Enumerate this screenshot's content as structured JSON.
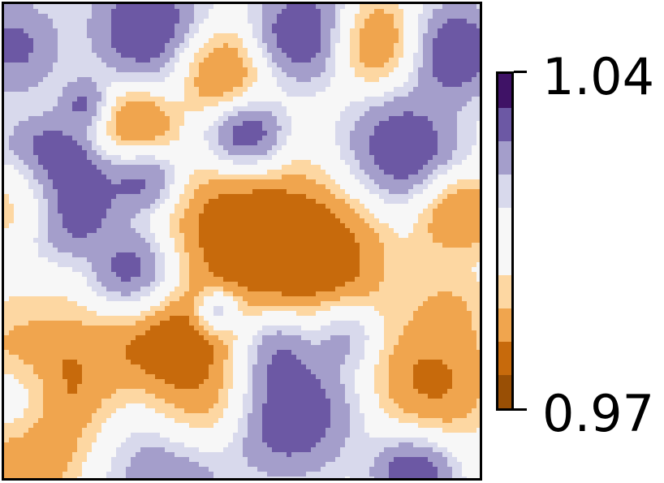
{
  "chart_data": {
    "type": "heatmap",
    "title": "",
    "xlabel": "",
    "ylabel": "",
    "plot_kind": "filled contour",
    "grid": false,
    "axes_ticks": false,
    "colormap": "PuOr",
    "value_range": [
      0.97,
      1.04
    ],
    "colorbar": {
      "min_label": "0.97",
      "max_label": "1.04",
      "position": "right",
      "levels": [
        0.97,
        0.977,
        0.984,
        0.991,
        0.998,
        1.005,
        1.012,
        1.019,
        1.026,
        1.033,
        1.04
      ],
      "colors": [
        "#994f05",
        "#c76a0c",
        "#f0a54e",
        "#fdd7a2",
        "#f7f7f7",
        "#f7f7f7",
        "#d8d9ec",
        "#a49ecb",
        "#6c58a4",
        "#3f1266"
      ]
    },
    "field": {
      "base_value": 1.005,
      "blobs": [
        {
          "x": 0.3,
          "y": 0.97,
          "v": 1.04,
          "s": 0.09
        },
        {
          "x": 0.6,
          "y": 0.86,
          "v": 1.04,
          "s": 0.08
        },
        {
          "x": 0.86,
          "y": 0.99,
          "v": 1.04,
          "s": 0.05
        },
        {
          "x": 0.58,
          "y": 0.73,
          "v": 1.035,
          "s": 0.045
        },
        {
          "x": 0.71,
          "y": 0.7,
          "v": 1.03,
          "s": 0.04
        },
        {
          "x": 0.45,
          "y": 0.65,
          "v": 1.035,
          "s": 0.025
        },
        {
          "x": 0.27,
          "y": 0.57,
          "v": 1.04,
          "s": 0.05
        },
        {
          "x": 0.14,
          "y": 0.42,
          "v": 1.04,
          "s": 0.065
        },
        {
          "x": 0.09,
          "y": 0.34,
          "v": 1.04,
          "s": 0.06
        },
        {
          "x": 0.29,
          "y": 0.37,
          "v": 1.035,
          "s": 0.04
        },
        {
          "x": 0.51,
          "y": 0.28,
          "v": 1.04,
          "s": 0.045
        },
        {
          "x": 0.17,
          "y": 0.21,
          "v": 1.035,
          "s": 0.03
        },
        {
          "x": 0.02,
          "y": 0.09,
          "v": 1.035,
          "s": 0.06
        },
        {
          "x": 0.3,
          "y": 0.05,
          "v": 1.04,
          "s": 0.07
        },
        {
          "x": 0.63,
          "y": 0.06,
          "v": 1.04,
          "s": 0.06
        },
        {
          "x": 0.84,
          "y": 0.31,
          "v": 1.04,
          "s": 0.07
        },
        {
          "x": 0.95,
          "y": 0.1,
          "v": 1.04,
          "s": 0.06
        },
        {
          "x": 0.02,
          "y": 0.84,
          "v": 1.025,
          "s": 0.05
        },
        {
          "x": 0.1,
          "y": 0.87,
          "v": 0.97,
          "s": 0.12
        },
        {
          "x": 0.36,
          "y": 0.73,
          "v": 0.97,
          "s": 0.08
        },
        {
          "x": 0.4,
          "y": 0.84,
          "v": 0.975,
          "s": 0.06
        },
        {
          "x": 0.65,
          "y": 0.53,
          "v": 0.97,
          "s": 0.09
        },
        {
          "x": 0.5,
          "y": 0.48,
          "v": 0.97,
          "s": 0.08
        },
        {
          "x": 0.03,
          "y": 0.41,
          "v": 0.98,
          "s": 0.05
        },
        {
          "x": 0.28,
          "y": 0.25,
          "v": 0.975,
          "s": 0.045
        },
        {
          "x": 0.45,
          "y": 0.14,
          "v": 0.975,
          "s": 0.05
        },
        {
          "x": 0.78,
          "y": 0.08,
          "v": 0.975,
          "s": 0.05
        },
        {
          "x": 0.95,
          "y": 0.44,
          "v": 0.975,
          "s": 0.05
        },
        {
          "x": 0.9,
          "y": 0.79,
          "v": 0.975,
          "s": 0.07
        },
        {
          "x": 0.93,
          "y": 0.65,
          "v": 0.985,
          "s": 0.05
        }
      ]
    }
  }
}
